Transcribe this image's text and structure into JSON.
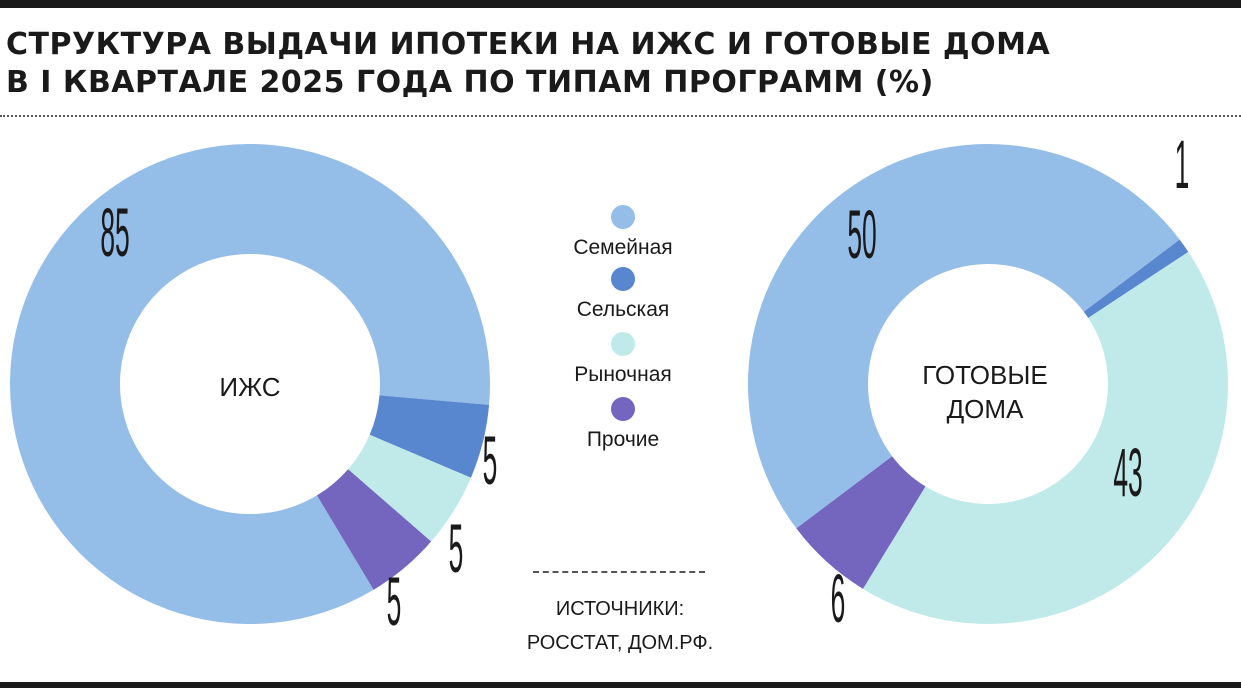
{
  "title_line1": "СТРУКТУРА ВЫДАЧИ ИПОТЕКИ НА ИЖС И ГОТОВЫЕ ДОМА",
  "title_line2": "В I КВАРТАЛЕ 2025 ГОДА ПО ТИПАМ ПРОГРАММ (%)",
  "legend": [
    {
      "label": "Семейная",
      "color": "#94bde8"
    },
    {
      "label": "Сельская",
      "color": "#5886cf"
    },
    {
      "label": "Рыночная",
      "color": "#bfeae9"
    },
    {
      "label": "Прочие",
      "color": "#7466bf"
    }
  ],
  "source": {
    "line1": "ИСТОЧНИКИ:",
    "line2": "РОССТАТ, ДОМ.РФ."
  },
  "chart_data": [
    {
      "type": "pie",
      "center_label": "ИЖС",
      "categories": [
        "Семейная",
        "Сельская",
        "Рыночная",
        "Прочие"
      ],
      "values": [
        85,
        5,
        5,
        5
      ],
      "value_labels": [
        "85",
        "5",
        "5",
        "5"
      ]
    },
    {
      "type": "pie",
      "center_label": "ГОТОВЫЕ ДОМА",
      "categories": [
        "Семейная",
        "Сельская",
        "Рыночная",
        "Прочие"
      ],
      "values": [
        50,
        1,
        43,
        6
      ],
      "value_labels": [
        "50",
        "1",
        "43",
        "6"
      ]
    }
  ]
}
